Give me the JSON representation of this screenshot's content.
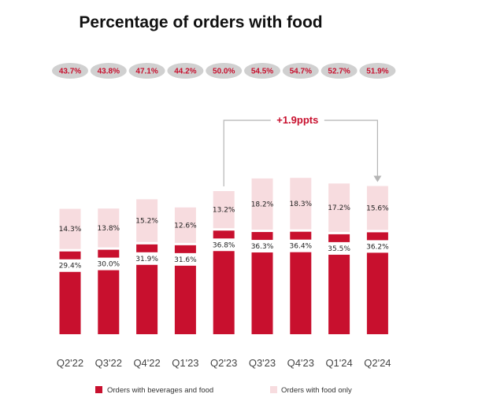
{
  "colors": {
    "beverages_food": "#c8102e",
    "food_only": "#f7dcdf",
    "accent_text": "#c8102e",
    "pill": "#d0d0d0",
    "connector": "#b5b5b5"
  },
  "chart_data": {
    "type": "bar",
    "stacked": true,
    "title": "Percentage of orders with food",
    "categories": [
      "Q2'22",
      "Q3'22",
      "Q4'22",
      "Q1'23",
      "Q2'23",
      "Q3'23",
      "Q4'23",
      "Q1'24",
      "Q2'24"
    ],
    "series": [
      {
        "name": "Orders with beverages and food",
        "values": [
          29.4,
          30.0,
          31.9,
          31.6,
          36.8,
          36.3,
          36.4,
          35.5,
          36.2
        ]
      },
      {
        "name": "Orders with food only",
        "values": [
          14.3,
          13.8,
          15.2,
          12.6,
          13.2,
          18.2,
          18.3,
          17.2,
          15.6
        ]
      }
    ],
    "segment_labels": {
      "beverages_food": [
        "29.4%",
        "30.0%",
        "31.9%",
        "31.6%",
        "36.8%",
        "36.3%",
        "36.4%",
        "35.5%",
        "36.2%"
      ],
      "food_only": [
        "14.3%",
        "13.8%",
        "15.2%",
        "12.6%",
        "13.2%",
        "18.2%",
        "18.3%",
        "17.2%",
        "15.6%"
      ]
    },
    "totals": [
      "43.7%",
      "43.8%",
      "47.1%",
      "44.2%",
      "50.0%",
      "54.5%",
      "54.7%",
      "52.7%",
      "51.9%"
    ],
    "annotation": {
      "text": "+1.9ppts",
      "from_category": "Q2'23",
      "to_category": "Q2'24"
    },
    "ylim": [
      0,
      56
    ],
    "legend_position": "bottom",
    "grid": false
  }
}
